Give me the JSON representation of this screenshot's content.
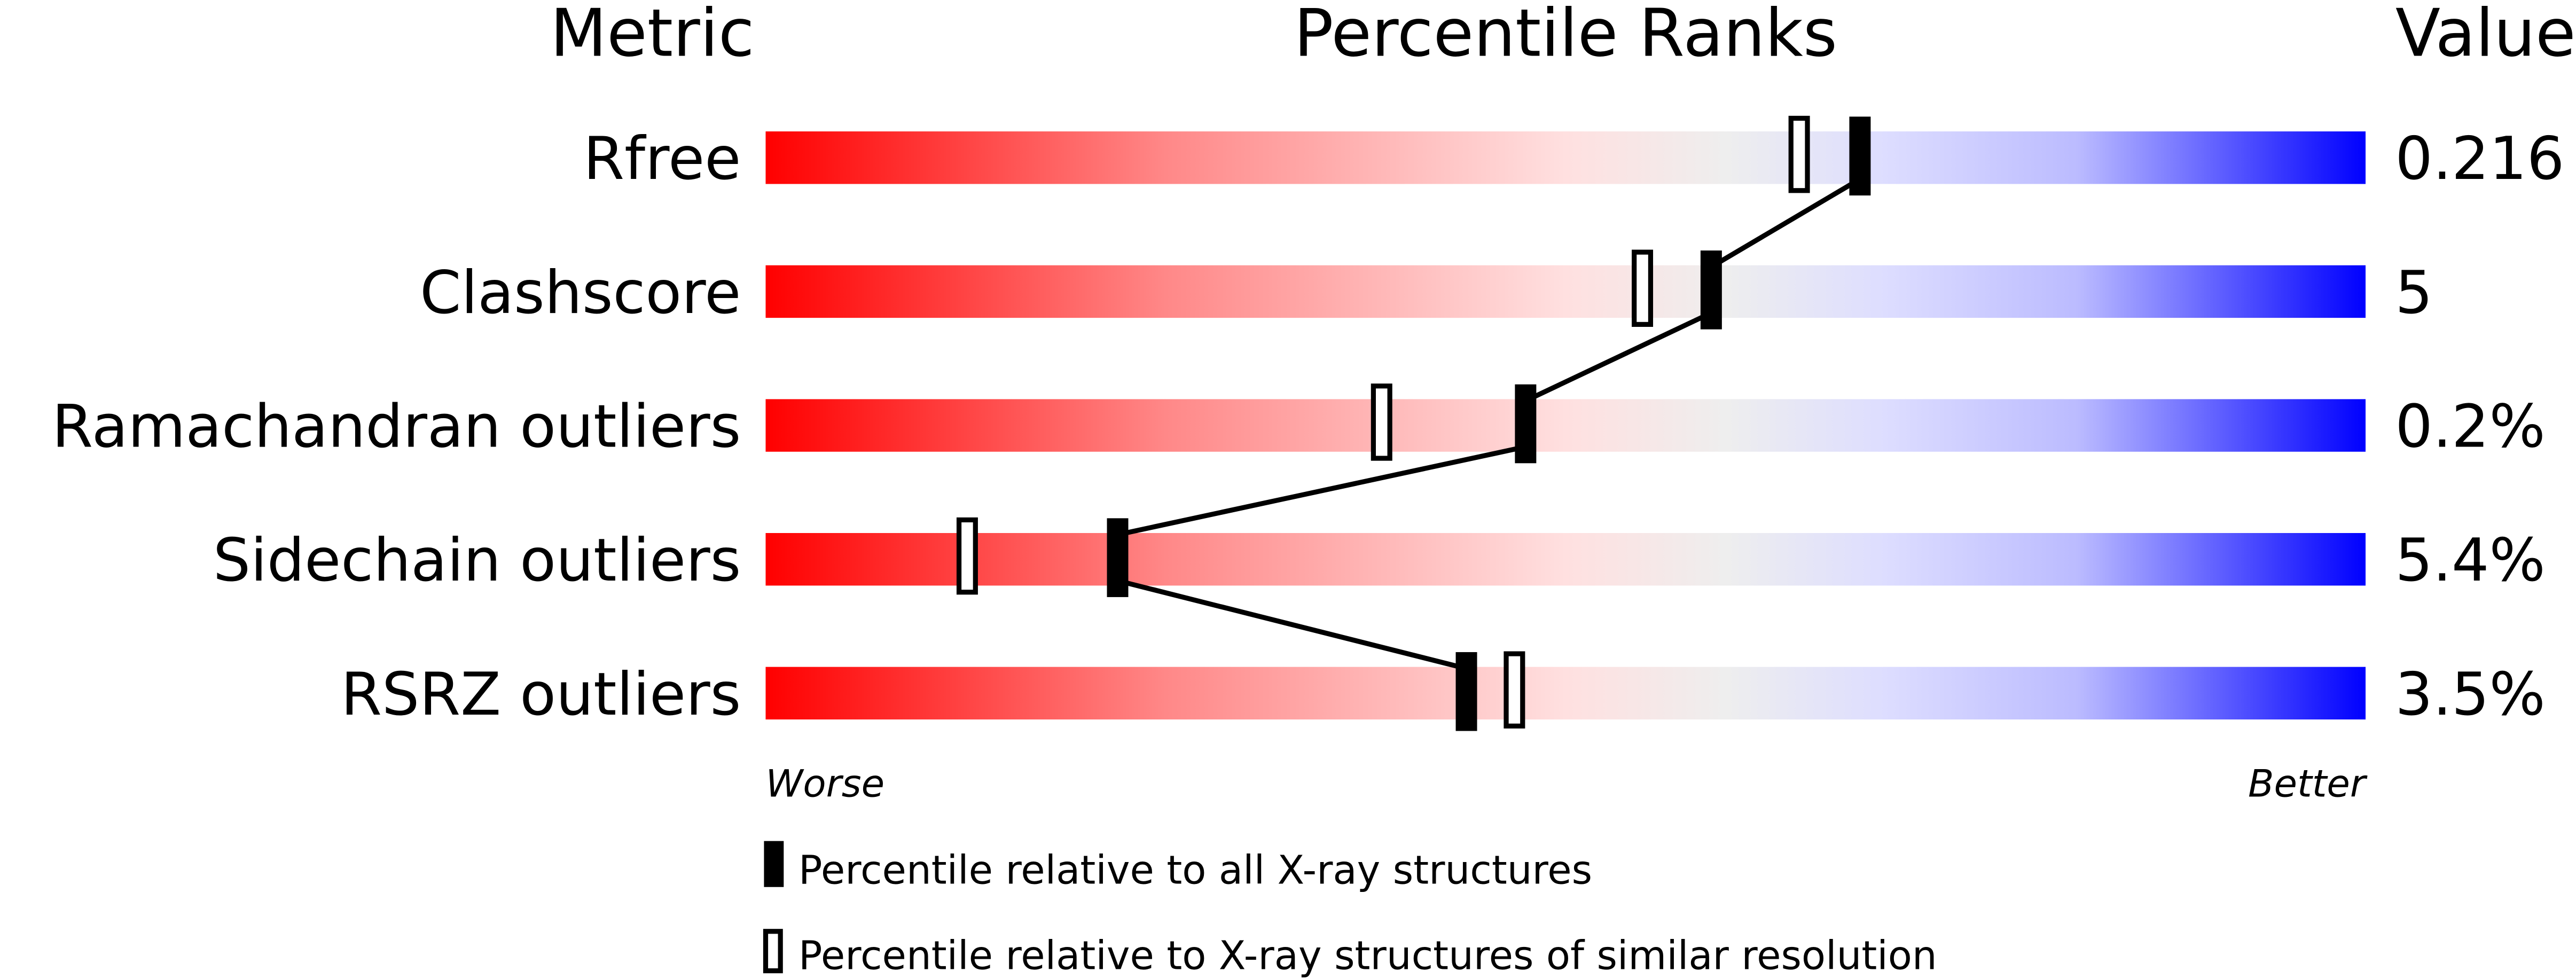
{
  "chart_data": {
    "type": "percentile-slider",
    "headers": {
      "metric": "Metric",
      "ranks": "Percentile Ranks",
      "value": "Value"
    },
    "xlim": [
      0,
      100
    ],
    "axis_labels": {
      "left": "Worse",
      "right": "Better"
    },
    "colors": {
      "worse": "#ff0000",
      "mid": "#eeeeee",
      "better": "#0000ff",
      "marker": "#000000"
    },
    "metrics": [
      {
        "name": "Rfree",
        "value": "0.216",
        "percentile_all": 68.4,
        "percentile_similar": 64.6
      },
      {
        "name": "Clashscore",
        "value": "5",
        "percentile_all": 59.1,
        "percentile_similar": 54.8
      },
      {
        "name": "Ramachandran outliers",
        "value": "0.2%",
        "percentile_all": 47.5,
        "percentile_similar": 38.5
      },
      {
        "name": "Sidechain outliers",
        "value": "5.4%",
        "percentile_all": 22.0,
        "percentile_similar": 12.6
      },
      {
        "name": "RSRZ outliers",
        "value": "3.5%",
        "percentile_all": 43.8,
        "percentile_similar": 46.8
      }
    ],
    "legend": [
      {
        "marker": "filled",
        "label": "Percentile relative to all X-ray structures"
      },
      {
        "marker": "open",
        "label": "Percentile relative to X-ray structures of similar resolution"
      }
    ]
  }
}
